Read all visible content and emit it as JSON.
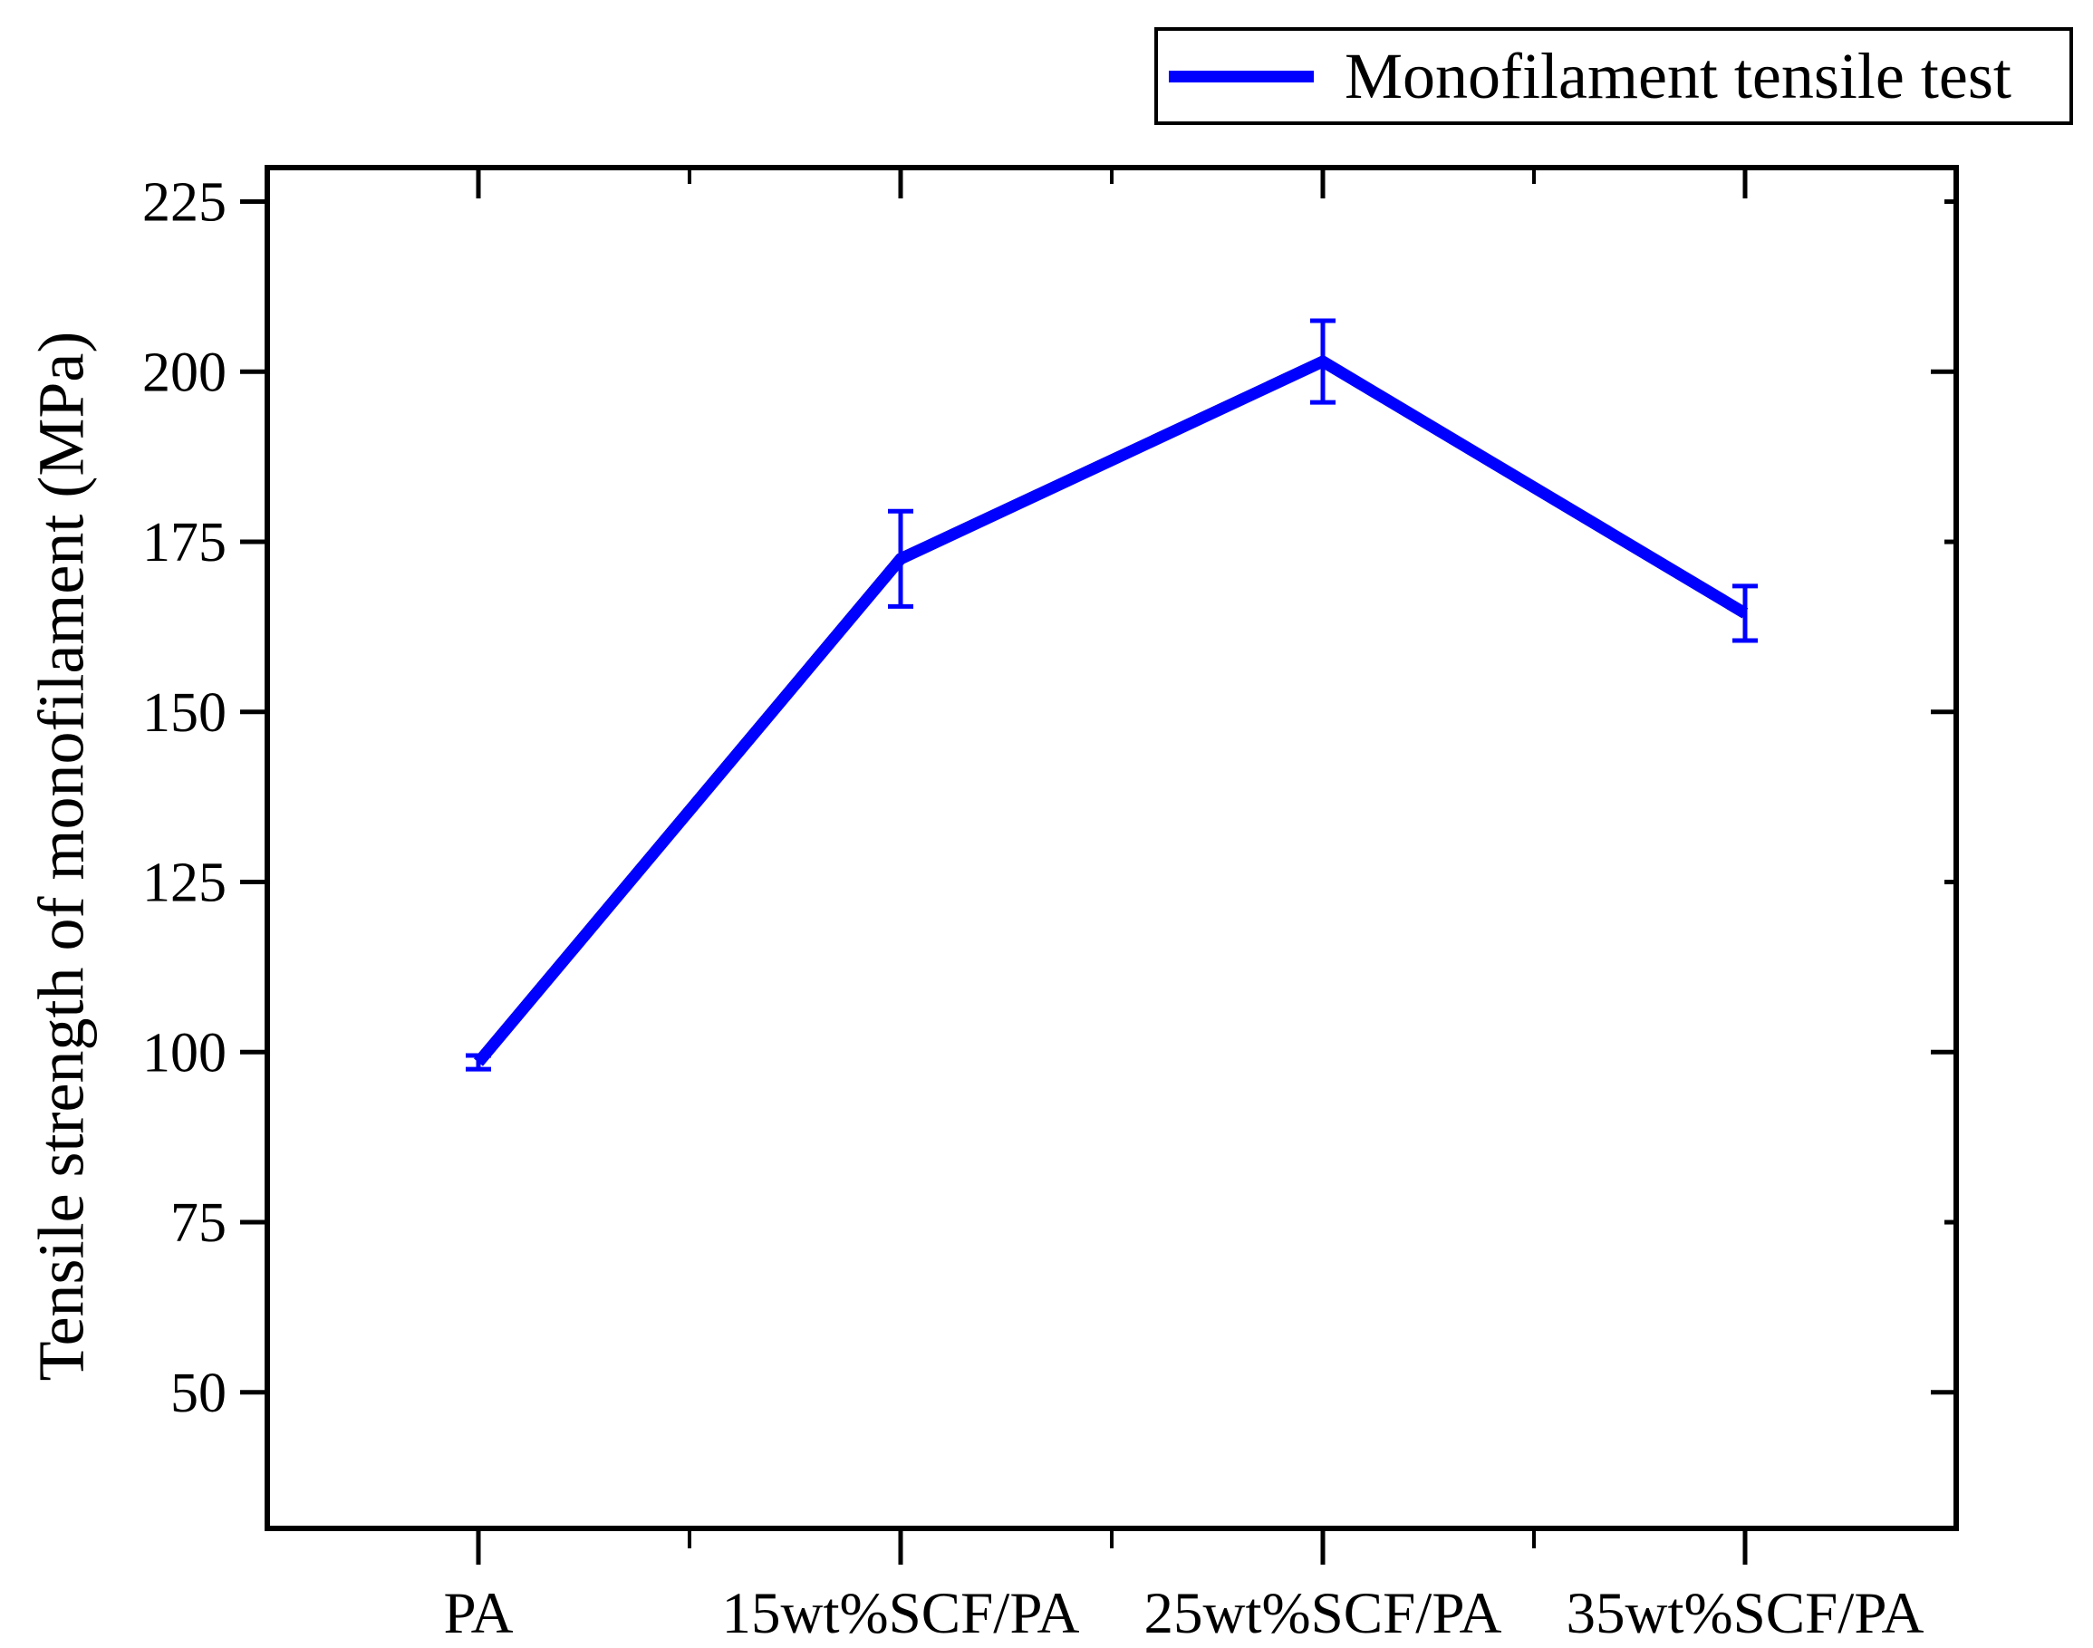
{
  "figure": {
    "background": "#ffffff"
  },
  "chart_data": {
    "type": "line",
    "categories": [
      "PA",
      "15wt%SCF/PA",
      "25wt%SCF/PA",
      "35wt%SCF/PA"
    ],
    "series": [
      {
        "name": "Monofilament tensile test",
        "values": [
          98.5,
          172.5,
          201.5,
          164.5
        ],
        "errors": [
          1,
          7,
          6,
          4
        ],
        "color": "#0000ff"
      }
    ],
    "title": "",
    "xlabel": "",
    "ylabel": "Tensile strength of monofilament (MPa)",
    "ylim": [
      30,
      230
    ],
    "yticks": [
      50,
      75,
      100,
      125,
      150,
      175,
      200,
      225
    ],
    "grid": false,
    "legend_position": "top-right",
    "error_bars": true,
    "marker": "none"
  },
  "legend": {
    "label": "Monofilament tensile test"
  },
  "colors": {
    "line": "#0000ff",
    "axis": "#000000",
    "text": "#000000",
    "background": "#ffffff"
  }
}
